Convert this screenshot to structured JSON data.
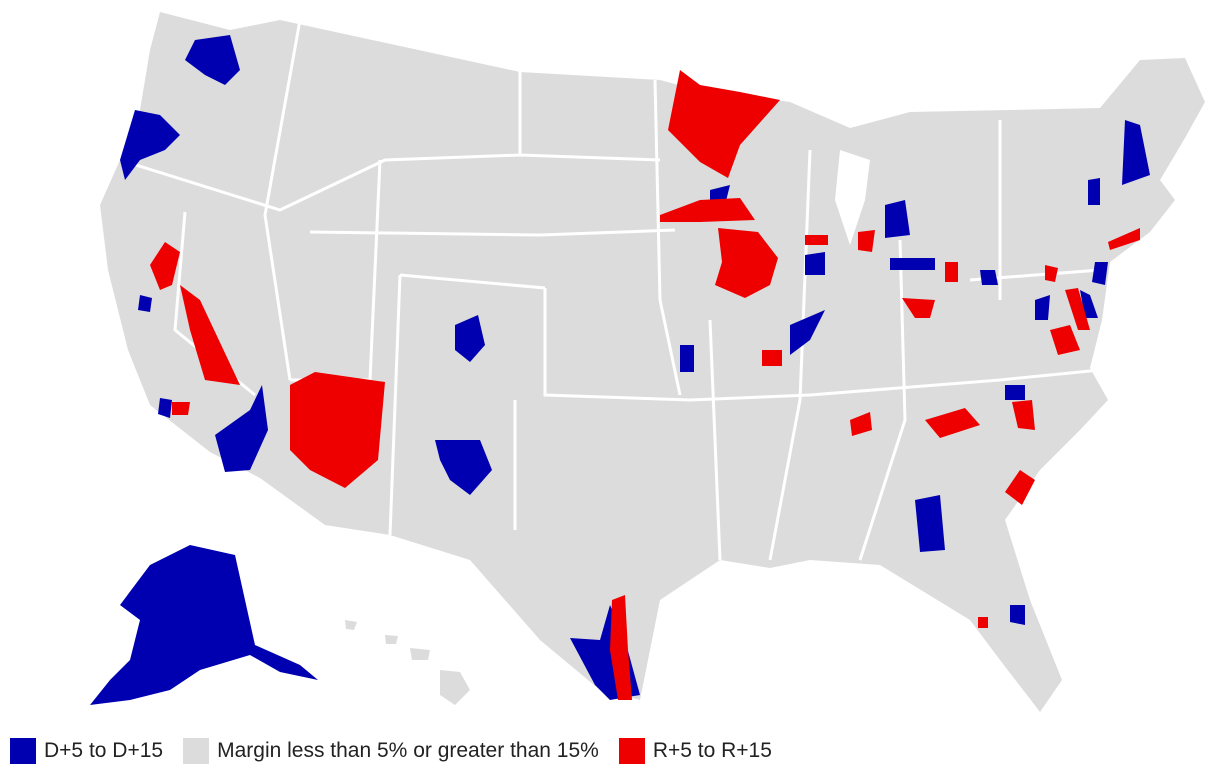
{
  "colors": {
    "democrat": "#0000b0",
    "neutral": "#dcdcdc",
    "republican": "#ee0000",
    "border": "#ffffff"
  },
  "legend": [
    {
      "label": "D+5 to D+15",
      "color": "#0000b0"
    },
    {
      "label": "Margin less than 5% or greater than 15%",
      "color": "#dcdcdc"
    },
    {
      "label": "R+5 to R+15",
      "color": "#ee0000"
    }
  ],
  "map": {
    "regions": [
      "contiguous-us",
      "alaska",
      "hawaii"
    ],
    "highlighted_districts": [
      {
        "area": "washington-seattle",
        "category": "democrat"
      },
      {
        "area": "oregon-portland",
        "category": "democrat"
      },
      {
        "area": "california-northeast",
        "category": "republican"
      },
      {
        "area": "california-central-coast",
        "category": "democrat"
      },
      {
        "area": "california-southern",
        "category": "democrat"
      },
      {
        "area": "arizona-north",
        "category": "republican"
      },
      {
        "area": "utah-salt-lake",
        "category": "democrat"
      },
      {
        "area": "new-mexico-albuquerque",
        "category": "democrat"
      },
      {
        "area": "minnesota-north",
        "category": "republican"
      },
      {
        "area": "minnesota-south",
        "category": "republican"
      },
      {
        "area": "iowa-east",
        "category": "republican"
      },
      {
        "area": "kansas-kansas-city",
        "category": "democrat"
      },
      {
        "area": "missouri-central",
        "category": "republican"
      },
      {
        "area": "illinois-central",
        "category": "democrat"
      },
      {
        "area": "michigan-central",
        "category": "democrat"
      },
      {
        "area": "michigan-west",
        "category": "republican"
      },
      {
        "area": "ohio-north",
        "category": "democrat"
      },
      {
        "area": "ohio-south",
        "category": "republican"
      },
      {
        "area": "kentucky-east",
        "category": "republican"
      },
      {
        "area": "tennessee-west",
        "category": "republican"
      },
      {
        "area": "north-carolina-central",
        "category": "republican"
      },
      {
        "area": "south-carolina-coast",
        "category": "republican"
      },
      {
        "area": "georgia-south",
        "category": "democrat"
      },
      {
        "area": "virginia-central",
        "category": "republican"
      },
      {
        "area": "pennsylvania-east",
        "category": "republican"
      },
      {
        "area": "new-jersey",
        "category": "democrat"
      },
      {
        "area": "new-york-long-island",
        "category": "republican"
      },
      {
        "area": "new-hampshire",
        "category": "democrat"
      },
      {
        "area": "texas-south-rio-grande",
        "category": "democrat"
      },
      {
        "area": "texas-south-coast",
        "category": "republican"
      },
      {
        "area": "florida-central",
        "category": "democrat"
      },
      {
        "area": "alaska-at-large",
        "category": "democrat"
      }
    ]
  }
}
